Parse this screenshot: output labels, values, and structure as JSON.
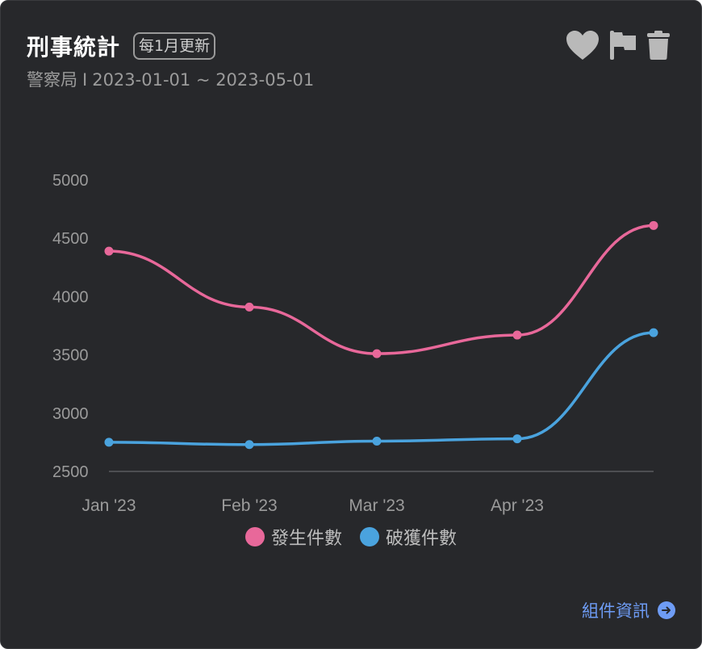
{
  "header": {
    "title": "刑事統計",
    "badge": "每1月更新",
    "source": "警察局",
    "separator": "I",
    "date_range": "2023-01-01 ~ 2023-05-01"
  },
  "actions": {
    "favorite_icon": "heart-icon",
    "flag_icon": "flag-icon",
    "delete_icon": "trash-icon"
  },
  "footer": {
    "link_label": "組件資訊",
    "link_icon": "arrow-right-circle-icon"
  },
  "colors": {
    "occurred": "#e8689a",
    "solved": "#4aa3de",
    "background": "#27282b",
    "link": "#6e9cf5"
  },
  "chart_data": {
    "type": "line",
    "x": [
      "2023-01-01",
      "2023-02-01",
      "2023-03-01",
      "2023-04-01",
      "2023-05-01"
    ],
    "x_tick_labels": [
      "Jan '23",
      "Feb '23",
      "Mar '23",
      "Apr '23"
    ],
    "y_ticks": [
      5000,
      4500,
      4000,
      3500,
      3000,
      2500
    ],
    "ylim": [
      2500,
      5000
    ],
    "legend_position": "bottom",
    "grid": false,
    "series": [
      {
        "name": "發生件數",
        "color": "#e8689a",
        "values": [
          4390,
          3910,
          3510,
          3670,
          4610
        ]
      },
      {
        "name": "破獲件數",
        "color": "#4aa3de",
        "values": [
          2750,
          2730,
          2760,
          2780,
          3690
        ]
      }
    ]
  }
}
